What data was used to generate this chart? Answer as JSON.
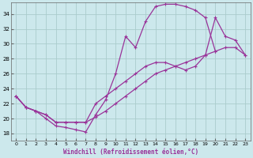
{
  "xlabel": "Windchill (Refroidissement éolien,°C)",
  "xlim": [
    -0.5,
    23.5
  ],
  "ylim": [
    17.0,
    35.5
  ],
  "xticks": [
    0,
    1,
    2,
    3,
    4,
    5,
    6,
    7,
    8,
    9,
    10,
    11,
    12,
    13,
    14,
    15,
    16,
    17,
    18,
    19,
    20,
    21,
    22,
    23
  ],
  "yticks": [
    18,
    20,
    22,
    24,
    26,
    28,
    30,
    32,
    34
  ],
  "bg_color": "#cce8ec",
  "grid_color": "#aacccc",
  "line_color": "#993399",
  "line1_x": [
    0,
    1,
    2,
    3,
    4,
    5,
    6,
    7,
    8,
    9,
    10,
    11,
    12,
    13,
    14,
    15,
    16,
    17,
    18,
    19,
    20
  ],
  "line1_y": [
    23.0,
    21.5,
    21.0,
    20.0,
    19.0,
    18.8,
    18.5,
    18.2,
    20.5,
    22.5,
    26.0,
    31.0,
    29.5,
    33.0,
    35.0,
    35.3,
    35.3,
    35.0,
    34.5,
    33.5,
    29.0
  ],
  "line2_x": [
    0,
    1,
    2,
    3,
    4,
    5,
    6,
    7,
    8,
    9,
    10,
    11,
    12,
    13,
    14,
    15,
    16,
    17,
    18,
    19,
    20,
    21,
    22,
    23
  ],
  "line2_y": [
    23.0,
    21.5,
    21.0,
    20.5,
    19.5,
    19.5,
    19.5,
    19.5,
    22.0,
    23.0,
    24.0,
    25.0,
    26.0,
    27.0,
    27.5,
    27.5,
    27.0,
    26.5,
    27.0,
    28.5,
    33.5,
    31.0,
    30.5,
    28.5
  ],
  "line3_x": [
    0,
    1,
    2,
    3,
    4,
    5,
    6,
    7,
    8,
    9,
    10,
    11,
    12,
    13,
    14,
    15,
    16,
    17,
    18,
    19,
    20,
    21,
    22,
    23
  ],
  "line3_y": [
    23.0,
    21.5,
    21.0,
    20.5,
    19.5,
    19.5,
    19.5,
    19.5,
    20.2,
    21.0,
    22.0,
    23.0,
    24.0,
    25.0,
    26.0,
    26.5,
    27.0,
    27.5,
    28.0,
    28.5,
    29.0,
    29.5,
    29.5,
    28.5
  ]
}
